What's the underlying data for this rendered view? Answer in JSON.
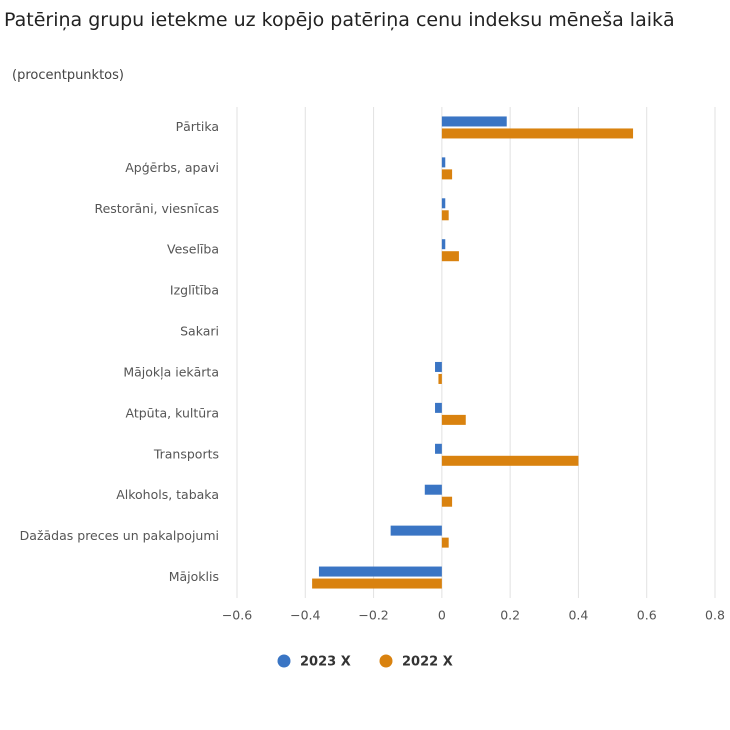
{
  "chart_data": {
    "type": "hbar",
    "title": "Patēriņa grupu ietekme uz kopējo patēriņa cenu indeksu mēneša laikā",
    "subtitle": "(procentpunktos)",
    "categories": [
      "Pārtika",
      "Apģērbs, apavi",
      "Restorāni, viesnīcas",
      "Veselība",
      "Izglītība",
      "Sakari",
      "Mājokļa iekārta",
      "Atpūta, kultūra",
      "Transports",
      "Alkohols, tabaka",
      "Dažādas preces un pakalpojumi",
      "Mājoklis"
    ],
    "series": [
      {
        "name": "2023 X",
        "color": "#3a75c4",
        "values": [
          0.19,
          0.01,
          0.01,
          0.01,
          0,
          0,
          -0.02,
          -0.02,
          -0.02,
          -0.05,
          -0.15,
          -0.36
        ]
      },
      {
        "name": "2022 X",
        "color": "#d9820f",
        "values": [
          0.56,
          0.03,
          0.02,
          0.05,
          0,
          0,
          -0.01,
          0.07,
          0.4,
          0.03,
          0.02,
          -0.38
        ]
      }
    ],
    "xlim": [
      -0.6,
      0.8
    ],
    "xticks": [
      {
        "value": -0.6,
        "label": "−0.6"
      },
      {
        "value": -0.4,
        "label": "−0.4"
      },
      {
        "value": -0.2,
        "label": "−0.2"
      },
      0,
      0.2,
      0.4,
      0.6,
      0.8
    ],
    "grid": true
  }
}
